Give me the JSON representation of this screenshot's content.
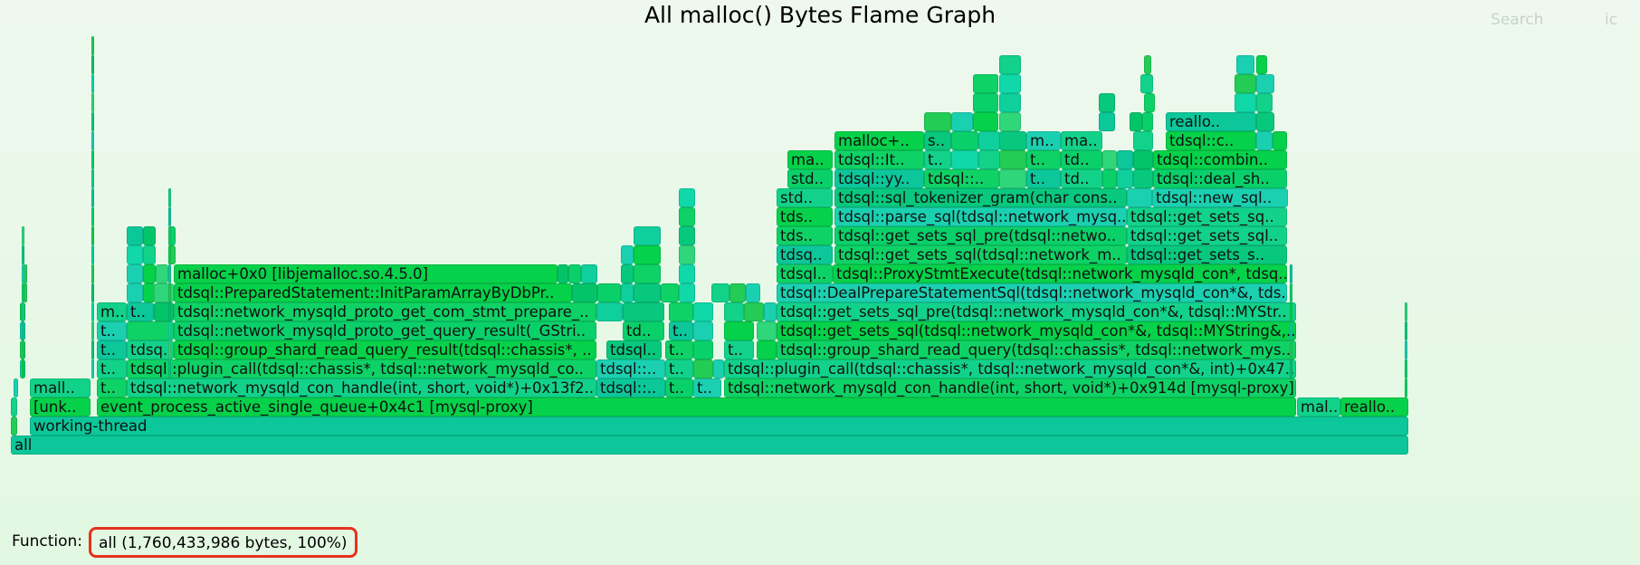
{
  "title": "All malloc() Bytes Flame Graph",
  "controls": {
    "search_label": "Search",
    "ic_label": "ic"
  },
  "status": {
    "label": "Function:",
    "details": "all (1,760,433,986 bytes, 100%)"
  },
  "colors": {
    "highlight_border": "#e5321d",
    "background": "#e8f8e8"
  },
  "frames": {
    "all": "all",
    "working_thread": "working-thread",
    "unknown": "[unk..",
    "event_process": "event_process_active_single_queue+0x4c1 [mysql-proxy]",
    "mal_right": "mal..",
    "realloc_right": "reallo..",
    "mall_left": "mall..",
    "t": "t..",
    "m": "m..",
    "tds": "tds..",
    "tdsq": "tdsq..",
    "tdsql_colon": "tdsql::..",
    "td": "td..",
    "td_left": "td..",
    "network_con_handle_left": "tdsql::network_mysqld_con_handle(int, short, void*)+0x13f2..",
    "plugin_call_left": "tdsql::plugin_call(tdsql::chassis*, tdsql::network_mysqld_co..",
    "group_shard_read_query_result": "tdsql::group_shard_read_query_result(tdsql::chassis*, ..",
    "get_query_result": "tdsql::network_mysqld_proto_get_query_result(_GStri..",
    "get_com_stmt_prepare": "tdsql::network_mysqld_proto_get_com_stmt_prepare_..",
    "init_param_array": "tdsql::PreparedStatement::InitParamArrayByDbPr..",
    "malloc_jemalloc": "malloc+0x0 [libjemalloc.so.4.5.0]",
    "network_con_handle_right": "tdsql::network_mysqld_con_handle(int, short, void*)+0x914d [mysql-proxy]",
    "plugin_call_right": "tdsql::plugin_call(tdsql::chassis*, tdsql::network_mysqld_con*&, int)+0x47..",
    "group_shard_read_query": "tdsql::group_shard_read_query(tdsql::chassis*, tdsql::network_mys..",
    "get_sets_sql_right": "tdsql::get_sets_sql(tdsql::network_mysqld_con*&, tdsql::MYString&,..",
    "get_sets_sql_pre_right": "tdsql::get_sets_sql_pre(tdsql::network_mysqld_con*&, tdsql::MYStr..",
    "deal_prepare": "tdsql::DealPrepareStatementSql(tdsql::network_mysqld_con*&, tds..",
    "proxy_stmt_execute": "tdsql::ProxyStmtExecute(tdsql::network_mysqld_con*, tdsq..",
    "get_sets_sql_mid": "tdsql::get_sets_sql(tdsql::network_m..",
    "get_sets_sql_pre_mid": "tdsql::get_sets_sql_pre(tdsql::netwo..",
    "parse_sql": "tdsql::parse_sql(tdsql::network_mysq..",
    "sql_tokenizer": "tdsql::sql_tokenizer_gram(char cons..",
    "yy": "tdsql::yy..",
    "tdsql_colon_short": "tdsql::..",
    "it": "tdsql::It..",
    "malloc_plus": "malloc+..",
    "ma_short": "ma..",
    "ma_dot": "ma..",
    "s_short": "s..",
    "std_short": "std..",
    "tdsql_short": "tdsql..",
    "get_sets_sq": "tdsql::get_sets_sq..",
    "get_sets_sql_r1": "tdsql::get_sets_sql..",
    "get_sets_s": "tdsql::get_sets_s..",
    "new_sql": "tdsql::new_sql..",
    "deal_sh": "tdsql::deal_sh..",
    "combin": "tdsql::combin..",
    "tdsql_c": "tdsql::c..",
    "reallo_top": "reallo.."
  }
}
